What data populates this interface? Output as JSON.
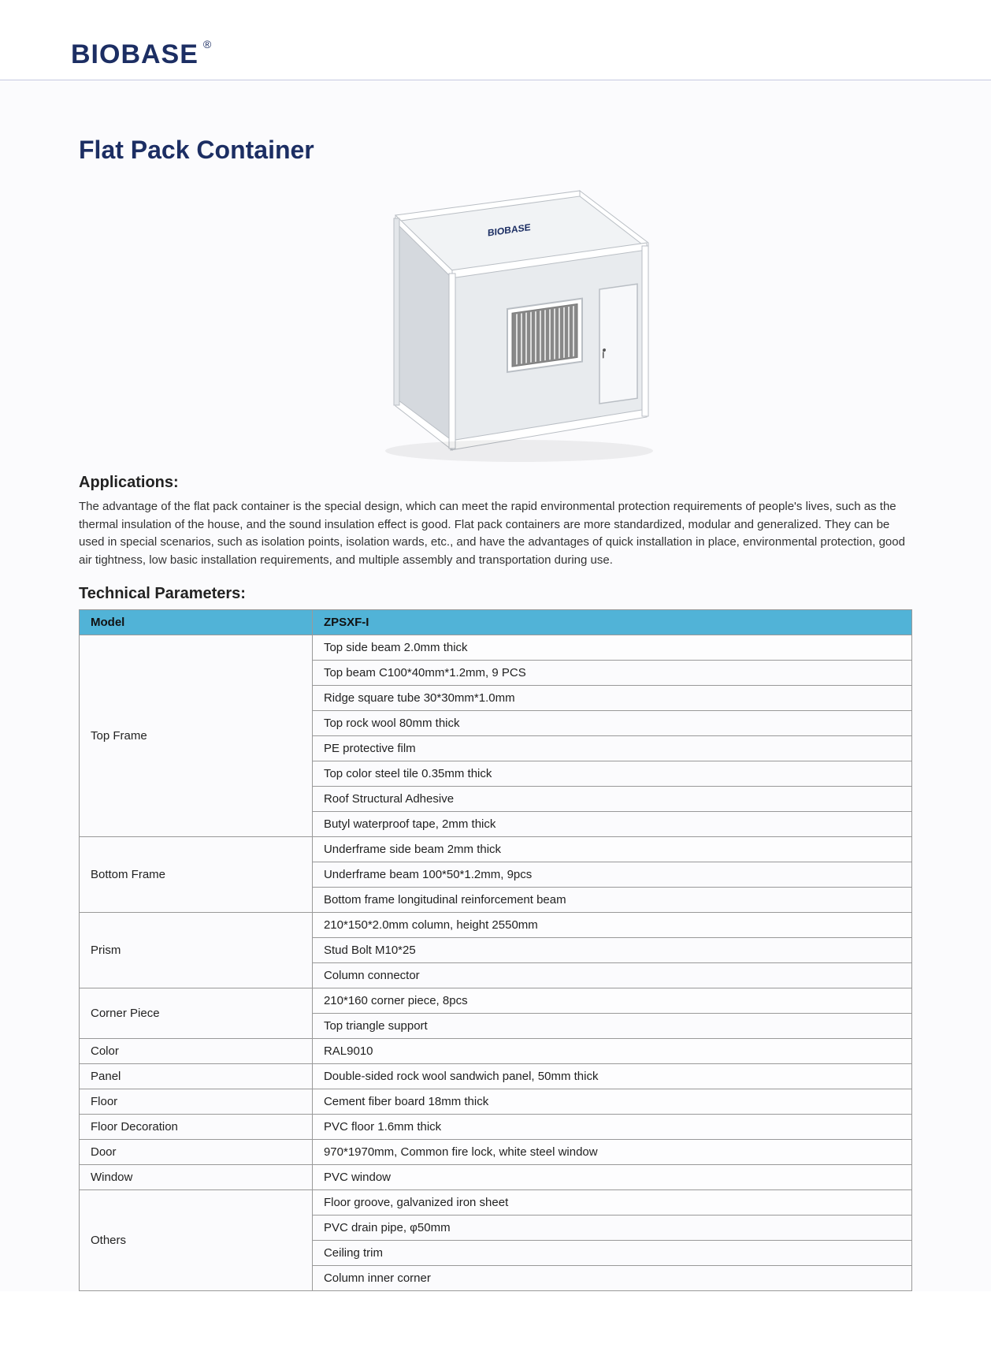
{
  "logo": {
    "text": "BIOBASE",
    "registered": "®"
  },
  "title": "Flat Pack Container",
  "product_brand_label": "BIOBASE",
  "sections": {
    "applications_heading": "Applications:",
    "applications_text": "The advantage of the flat pack container is the special design, which can meet the rapid environmental protection requirements of people's lives, such as the thermal insulation of the house, and the sound insulation effect is good. Flat pack containers are more standardized, modular and generalized. They can be used in special scenarios, such as isolation points, isolation wards, etc., and have the advantages of quick installation in place, environmental protection, good air tightness, low basic installation requirements, and multiple assembly and transportation during use.",
    "tech_heading": "Technical Parameters:"
  },
  "table": {
    "header": {
      "col1": "Model",
      "col2": "ZPSXF-I"
    },
    "rows": [
      {
        "label": "Top Frame",
        "values": [
          "Top side beam 2.0mm thick",
          "Top beam C100*40mm*1.2mm, 9 PCS",
          "Ridge square tube 30*30mm*1.0mm",
          "Top rock wool 80mm thick",
          "PE protective film",
          "Top color steel tile 0.35mm thick",
          "Roof Structural Adhesive",
          "Butyl waterproof tape, 2mm thick"
        ]
      },
      {
        "label": "Bottom Frame",
        "values": [
          "Underframe side beam 2mm thick",
          "Underframe beam 100*50*1.2mm, 9pcs",
          "Bottom frame longitudinal reinforcement beam"
        ]
      },
      {
        "label": "Prism",
        "values": [
          "210*150*2.0mm column, height 2550mm",
          "Stud Bolt M10*25",
          "Column connector"
        ]
      },
      {
        "label": "Corner Piece",
        "values": [
          "210*160 corner piece, 8pcs",
          "Top triangle support"
        ]
      },
      {
        "label": "Color",
        "values": [
          "RAL9010"
        ]
      },
      {
        "label": "Panel",
        "values": [
          "Double-sided rock wool sandwich panel, 50mm thick"
        ]
      },
      {
        "label": "Floor",
        "values": [
          "Cement fiber board 18mm thick"
        ]
      },
      {
        "label": "Floor Decoration",
        "values": [
          "PVC floor 1.6mm thick"
        ]
      },
      {
        "label": "Door",
        "values": [
          "970*1970mm, Common fire lock, white steel window"
        ]
      },
      {
        "label": "Window",
        "values": [
          "PVC window"
        ]
      },
      {
        "label": "Others",
        "values": [
          "Floor groove, galvanized iron sheet",
          "PVC drain pipe, φ50mm",
          "Ceiling trim",
          "Column inner corner"
        ]
      }
    ]
  },
  "colors": {
    "brand": "#1c2e63",
    "table_header_bg": "#51b3d7",
    "border": "#999999",
    "page_bg": "#fbfbfd",
    "container_wall": "#e8ebee",
    "container_wall_dark": "#d5d9de",
    "container_roof": "#f1f3f5",
    "container_frame": "#ffffff",
    "container_edge": "#c8ccd1"
  }
}
